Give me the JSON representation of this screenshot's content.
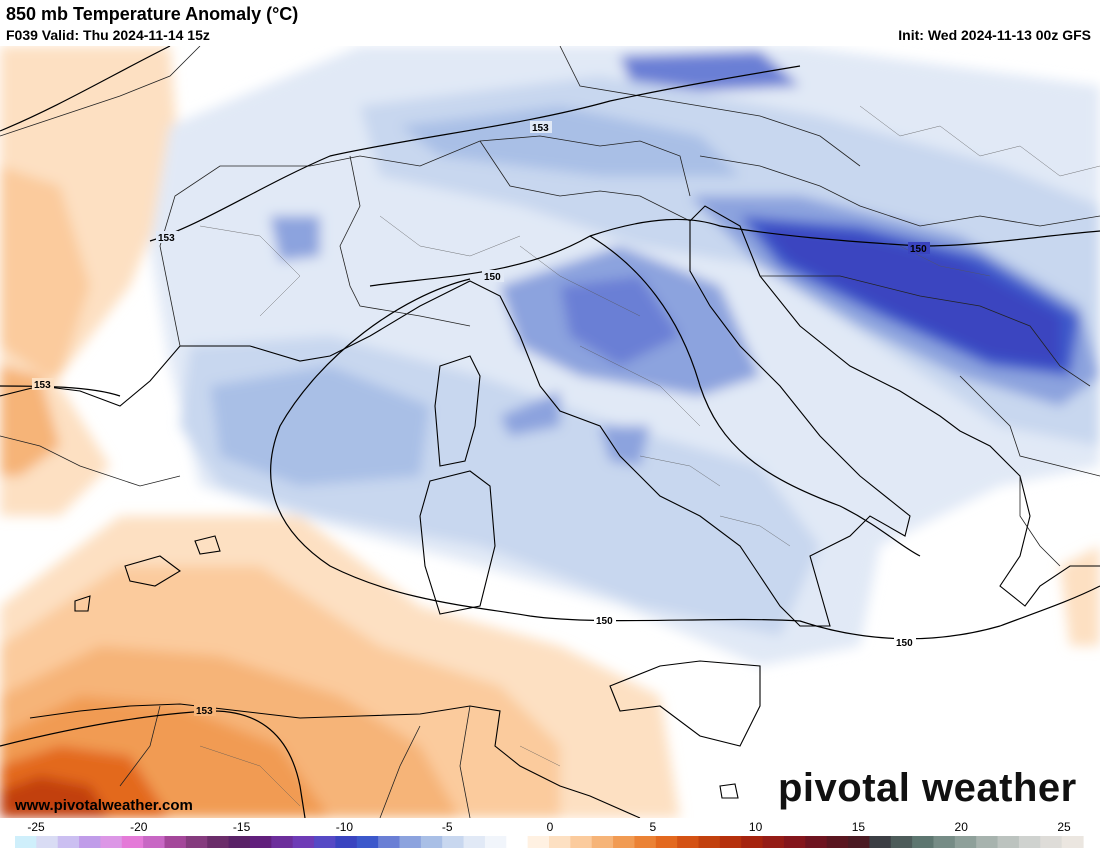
{
  "header": {
    "title": "850 mb Temperature Anomaly (°C)",
    "valid": "F039 Valid: Thu 2024-11-14 15z",
    "init": "Init: Wed 2024-11-13 00z GFS"
  },
  "footer": {
    "url": "www.pivotalweather.com",
    "brand": "pivotal weather"
  },
  "contour_labels": [
    "153",
    "153",
    "153",
    "150",
    "150",
    "150",
    "150",
    "153"
  ],
  "colorbar": {
    "ticks": [
      "-25",
      "-20",
      "-15",
      "-10",
      "-5",
      "0",
      "5",
      "10",
      "15",
      "20",
      "25"
    ],
    "colors": [
      "#cfeffb",
      "#d9dcf4",
      "#cbbff1",
      "#c09ce9",
      "#dc97e6",
      "#e47ad8",
      "#c867c4",
      "#a4479a",
      "#853b7e",
      "#6b2d6a",
      "#5a2267",
      "#611f7c",
      "#6c2e9b",
      "#6e3bb6",
      "#5649c5",
      "#3a44c0",
      "#3c58cb",
      "#6a7fd5",
      "#8ca3de",
      "#a9bfe6",
      "#c8d7ef",
      "#e1e9f6",
      "#f1f5fb",
      "#ffffff",
      "#fff1e2",
      "#fde0c2",
      "#fbcb9d",
      "#f6b478",
      "#f19b53",
      "#eb8235",
      "#e3691f",
      "#d45214",
      "#c2410e",
      "#b5300c",
      "#a5230e",
      "#951c16",
      "#84161c",
      "#6e1420",
      "#5a1620",
      "#4b1a23",
      "#3c3e44",
      "#4d5c5a",
      "#5d7670",
      "#768c86",
      "#8ea09a",
      "#a7b3ae",
      "#bcc3bf",
      "#cfd2cf",
      "#dedcd8",
      "#ebe6e0"
    ]
  }
}
